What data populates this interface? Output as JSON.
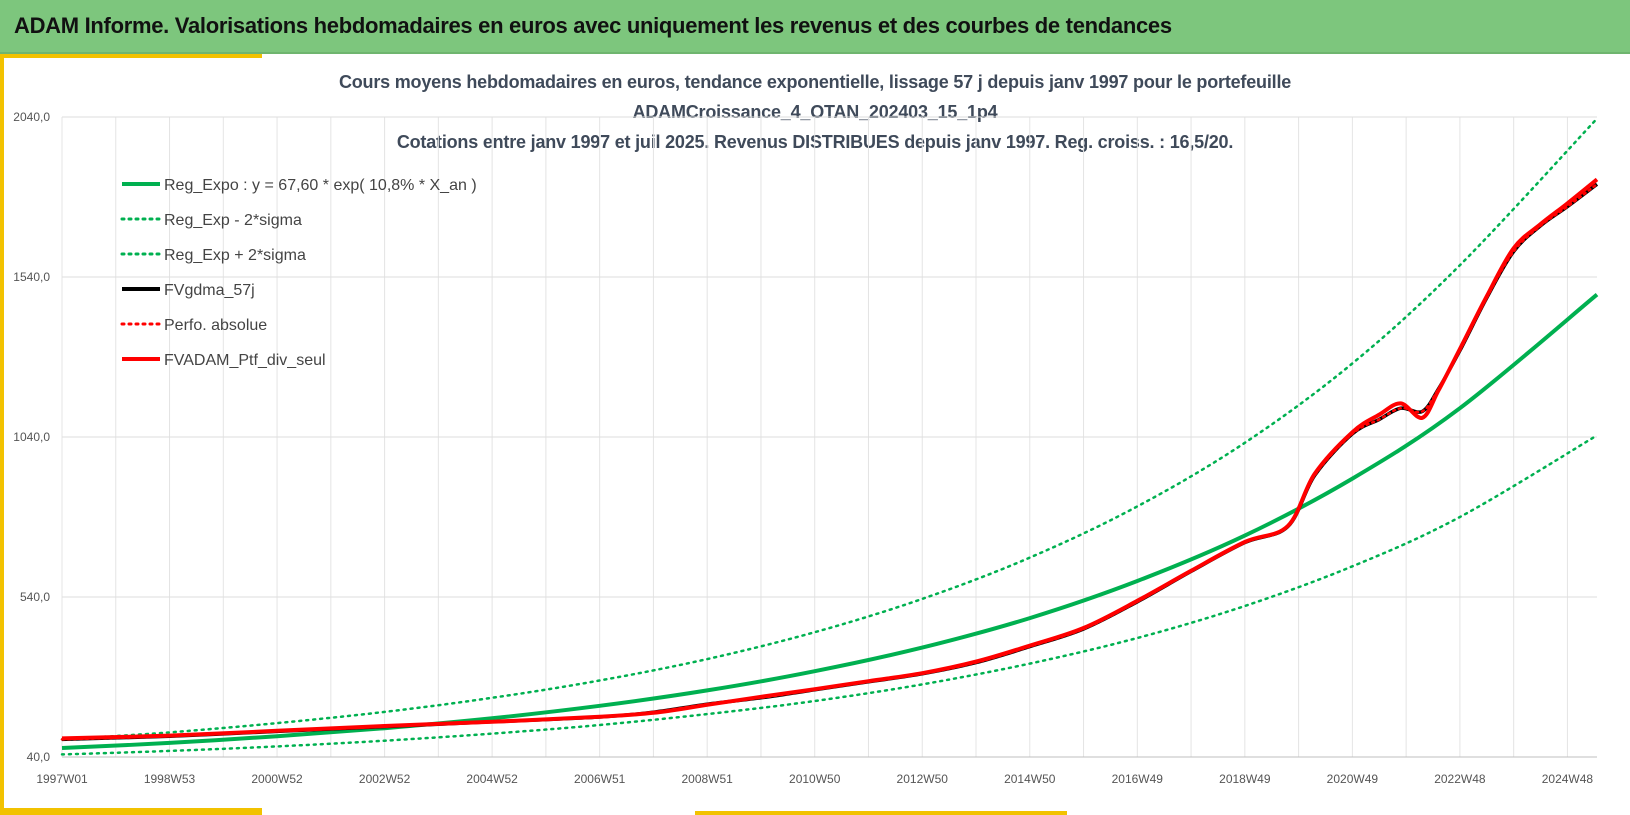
{
  "header": {
    "title": "ADAM Informe. Valorisations hebdomadaires en euros avec uniquement les revenus et des courbes de tendances"
  },
  "chart_data": {
    "type": "line",
    "title_lines": [
      "Cours moyens hebdomadaires  en euros, tendance exponentielle, lissage 57 j depuis janv 1997 pour le portefeuille",
      "ADAMCroissance_4_OTAN_202403_15_1p4",
      "Cotations  entre janv 1997 et juil 2025. Revenus DISTRIBUES depuis janv 1997. Reg. croiss. : 16,5/20."
    ],
    "xlabel": "",
    "ylabel": "",
    "x_tick_labels": [
      "1997W01",
      "1998W53",
      "2000W52",
      "2002W52",
      "2004W52",
      "2006W51",
      "2008W51",
      "2010W50",
      "2012W50",
      "2014W50",
      "2016W49",
      "2018W49",
      "2020W49",
      "2022W48",
      "2024W48"
    ],
    "x_ticks_year": [
      1997,
      1999,
      2001,
      2003,
      2005,
      2007,
      2009,
      2011,
      2013,
      2015,
      2017,
      2019,
      2021,
      2023,
      2025
    ],
    "xlim": [
      1997.0,
      2025.55
    ],
    "y_tick_labels": [
      "40,0",
      "540,0",
      "1040,0",
      "1540,0",
      "2040,0"
    ],
    "y_ticks": [
      40,
      540,
      1040,
      1540,
      2040
    ],
    "ylim": [
      40,
      2040
    ],
    "grid": true,
    "legend_position": "top-left",
    "colors": {
      "reg_expo": "#00b050",
      "sigma": "#00b050",
      "fvgdma": "#000000",
      "perfo": "#ff0000",
      "ptf": "#ff0000"
    },
    "series": [
      {
        "name": "Reg_Expo : y = 67,60 * exp( 10,8% *  X_an )",
        "style": "solid",
        "x": [
          1997,
          1999,
          2001,
          2003,
          2005,
          2007,
          2009,
          2011,
          2013,
          2015,
          2017,
          2019,
          2021,
          2023,
          2025.55
        ],
        "values": [
          68,
          84,
          105,
          130,
          161,
          200,
          248,
          308,
          382,
          474,
          590,
          732,
          910,
          1130,
          1485
        ]
      },
      {
        "name": "Reg_Exp - 2*sigma",
        "style": "dotted",
        "x": [
          1997,
          1999,
          2001,
          2003,
          2005,
          2007,
          2009,
          2011,
          2013,
          2015,
          2017,
          2019,
          2021,
          2023,
          2025.55
        ],
        "values": [
          48,
          59,
          73,
          91,
          113,
          140,
          174,
          215,
          267,
          332,
          412,
          512,
          636,
          790,
          1045
        ]
      },
      {
        "name": "Reg_Exp + 2*sigma",
        "style": "dotted",
        "x": [
          1997,
          1999,
          2001,
          2003,
          2005,
          2007,
          2009,
          2011,
          2013,
          2015,
          2017,
          2019,
          2021,
          2023,
          2025.55
        ],
        "values": [
          95,
          117,
          146,
          181,
          225,
          279,
          346,
          430,
          534,
          663,
          823,
          1022,
          1270,
          1577,
          2035
        ]
      },
      {
        "name": "FVgdma_57j",
        "style": "solid",
        "x": [
          1997,
          1999,
          2001,
          2003,
          2005,
          2007,
          2008,
          2009,
          2010,
          2011,
          2012,
          2013,
          2014,
          2015,
          2016,
          2017,
          2018,
          2019,
          2019.8,
          2020.3,
          2021,
          2021.5,
          2021.9,
          2022.3,
          2022.6,
          2023,
          2023.5,
          2024,
          2024.5,
          2025,
          2025.55
        ],
        "values": [
          95,
          105,
          120,
          135,
          150,
          165,
          180,
          205,
          225,
          250,
          275,
          300,
          335,
          385,
          440,
          525,
          620,
          710,
          760,
          920,
          1050,
          1095,
          1130,
          1120,
          1190,
          1310,
          1475,
          1620,
          1700,
          1760,
          1830
        ]
      },
      {
        "name": "Perfo. absolue",
        "style": "dotted",
        "x": [
          1997,
          1999,
          2001,
          2003,
          2005,
          2007,
          2008,
          2009,
          2010,
          2011,
          2012,
          2013,
          2014,
          2015,
          2016,
          2017,
          2018,
          2019,
          2019.8,
          2020.3,
          2021,
          2021.5,
          2021.9,
          2022.3,
          2022.6,
          2023,
          2023.5,
          2024,
          2024.5,
          2025,
          2025.55
        ],
        "values": [
          95,
          105,
          120,
          135,
          150,
          165,
          180,
          205,
          225,
          250,
          275,
          300,
          335,
          385,
          440,
          525,
          620,
          710,
          760,
          920,
          1050,
          1095,
          1130,
          1120,
          1190,
          1310,
          1475,
          1620,
          1700,
          1760,
          1830
        ]
      },
      {
        "name": "FVADAM_Ptf_div_seul",
        "style": "solid",
        "x": [
          1997,
          1999,
          2001,
          2003,
          2005,
          2007,
          2008,
          2009,
          2010,
          2011,
          2012,
          2013,
          2014,
          2015,
          2016,
          2017,
          2018,
          2019,
          2019.8,
          2020.3,
          2021,
          2021.5,
          2021.9,
          2022.3,
          2022.6,
          2023,
          2023.5,
          2024,
          2024.5,
          2025,
          2025.55
        ],
        "values": [
          98,
          107,
          122,
          137,
          150,
          166,
          178,
          203,
          228,
          252,
          277,
          302,
          338,
          388,
          443,
          528,
          622,
          712,
          762,
          925,
          1055,
          1110,
          1145,
          1100,
          1185,
          1315,
          1480,
          1630,
          1705,
          1770,
          1845
        ]
      }
    ]
  }
}
